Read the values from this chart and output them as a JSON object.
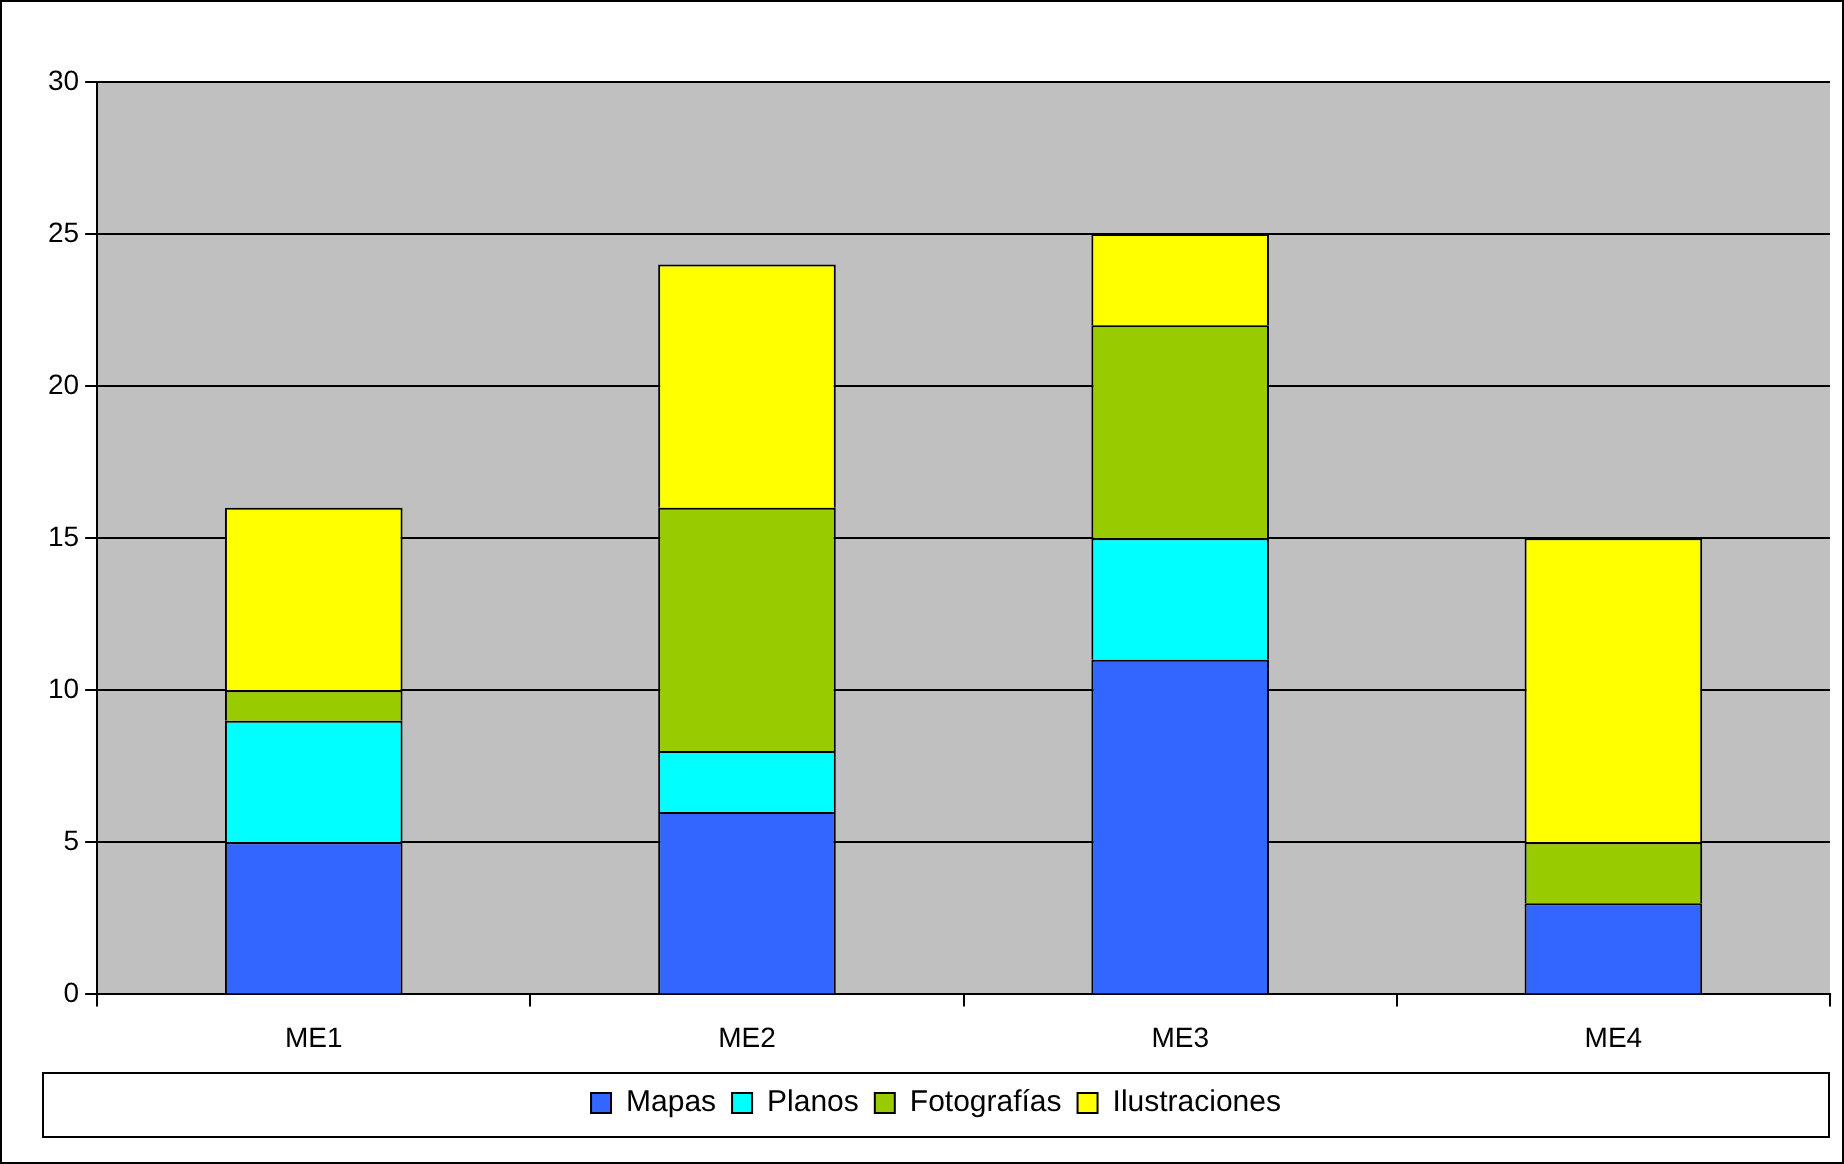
{
  "chart_data": {
    "type": "bar",
    "stacked": true,
    "categories": [
      "ME1",
      "ME2",
      "ME3",
      "ME4"
    ],
    "series": [
      {
        "name": "Mapas",
        "color": "#3366ff",
        "values": [
          5,
          6,
          11,
          3
        ]
      },
      {
        "name": "Planos",
        "color": "#00ffff",
        "values": [
          4,
          2,
          4,
          0
        ]
      },
      {
        "name": "Fotografías",
        "color": "#99cc00",
        "values": [
          1,
          8,
          7,
          2
        ]
      },
      {
        "name": "Ilustraciones",
        "color": "#ffff00",
        "values": [
          6,
          8,
          3,
          10
        ]
      }
    ],
    "ylim": [
      0,
      30
    ],
    "yticks": [
      0,
      5,
      10,
      15,
      20,
      25,
      30
    ],
    "grid": "y",
    "legend": "bottom"
  }
}
